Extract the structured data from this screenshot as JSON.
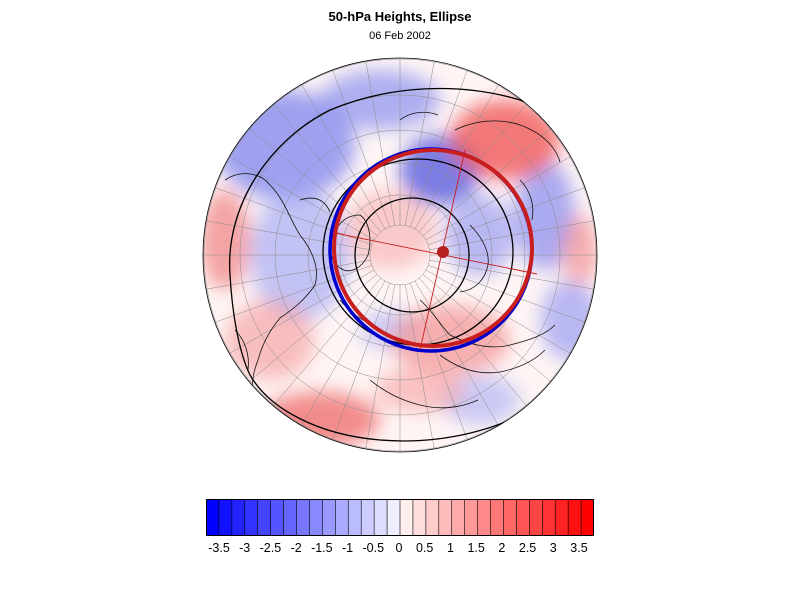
{
  "title": "50-hPa Heights, Ellipse",
  "subtitle": "06 Feb 2002",
  "colorbar": {
    "labels": [
      "-3.5",
      "-3",
      "-2.5",
      "-2",
      "-1.5",
      "-1",
      "-0.5",
      "0",
      "0.5",
      "1",
      "1.5",
      "2",
      "2.5",
      "3",
      "3.5"
    ],
    "min_color": "#0000ff",
    "mid_color": "#ffffff",
    "max_color": "#ff0000"
  },
  "map": {
    "projection": "polar-stereographic-north",
    "anomaly_colors": {
      "negative": "#0000ff",
      "positive": "#ff0000"
    },
    "ellipse_colors": {
      "outer": "#0000cc",
      "inner": "#c81e1e"
    },
    "center_marker_color": "#b41e1e"
  }
}
